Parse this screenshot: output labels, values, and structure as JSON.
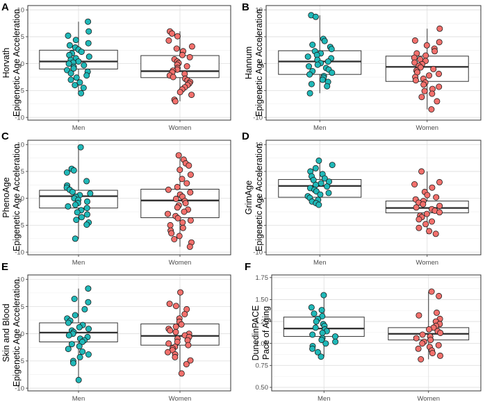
{
  "chart_data": [
    {
      "type": "boxplot",
      "panel": "A",
      "ylabel": [
        "Horvath",
        "Epigenetic Age Acceleration"
      ],
      "categories": [
        "Men",
        "Women"
      ],
      "ylim": [
        -10.5,
        10.8
      ],
      "yticks": [
        -10,
        -5,
        0,
        5,
        10
      ],
      "ytick_labels": [
        "-10",
        "-5",
        "0",
        "5",
        "10"
      ],
      "boxes": [
        {
          "q1": -1.0,
          "median": 0.4,
          "q3": 2.5,
          "whisker_low": -5.5,
          "whisker_high": 7.8
        },
        {
          "q1": -2.6,
          "median": -1.4,
          "q3": 1.5,
          "whisker_low": -7.0,
          "whisker_high": 6.0
        }
      ],
      "points": [
        [
          7.8,
          6.0,
          5.2,
          4.4,
          3.8,
          3.4,
          3.0,
          2.6,
          2.2,
          1.9,
          1.6,
          1.3,
          1.0,
          0.7,
          0.4,
          0.2,
          0.0,
          -0.3,
          -0.6,
          -0.9,
          -1.2,
          -1.5,
          -1.8,
          -2.2,
          -2.6,
          -3.0,
          -3.5,
          -4.0,
          -4.5,
          -5.5
        ],
        [
          6.0,
          5.6,
          5.1,
          4.3,
          3.2,
          2.8,
          2.3,
          1.6,
          1.2,
          0.8,
          0.4,
          0.1,
          -0.2,
          -0.5,
          -0.8,
          -1.1,
          -1.3,
          -1.6,
          -1.9,
          -2.2,
          -2.5,
          -2.8,
          -3.1,
          -3.4,
          -3.7,
          -4.0,
          -4.4,
          -4.8,
          -5.3,
          -5.8,
          -6.7,
          -7.0
        ]
      ]
    },
    {
      "type": "boxplot",
      "panel": "B",
      "ylabel": [
        "Hannum",
        "Epigenetic Age Acceleration"
      ],
      "categories": [
        "Men",
        "Women"
      ],
      "ylim": [
        -10.5,
        10.8
      ],
      "yticks": [
        -10,
        -5,
        0,
        5,
        10
      ],
      "ytick_labels": [
        "-10",
        "-5",
        "0",
        "5",
        "10"
      ],
      "boxes": [
        {
          "q1": -2.0,
          "median": 0.4,
          "q3": 2.4,
          "whisker_low": -5.5,
          "whisker_high": 9.0
        },
        {
          "q1": -3.3,
          "median": -0.6,
          "q3": 1.4,
          "whisker_low": -8.5,
          "whisker_high": 6.5
        }
      ],
      "points": [
        [
          9.0,
          8.7,
          4.6,
          4.2,
          3.5,
          3.1,
          2.7,
          2.3,
          1.9,
          1.6,
          1.3,
          1.0,
          0.7,
          0.4,
          0.1,
          -0.2,
          -0.5,
          -0.8,
          -1.1,
          -1.4,
          -1.7,
          -2.0,
          -2.3,
          -2.6,
          -3.0,
          -3.4,
          -3.8,
          -4.2,
          -5.5
        ],
        [
          6.5,
          4.3,
          4.0,
          3.4,
          2.8,
          2.3,
          1.9,
          1.5,
          1.1,
          0.8,
          0.5,
          0.2,
          -0.1,
          -0.4,
          -0.7,
          -1.0,
          -1.3,
          -1.6,
          -1.9,
          -2.2,
          -2.5,
          -2.8,
          -3.1,
          -3.5,
          -3.9,
          -4.3,
          -4.7,
          -5.1,
          -5.6,
          -6.2,
          -7.0,
          -8.5
        ]
      ]
    },
    {
      "type": "boxplot",
      "panel": "C",
      "ylabel": [
        "PhenoAge",
        "Epigenetic Age Acceleration"
      ],
      "categories": [
        "Men",
        "Women"
      ],
      "ylim": [
        -10.5,
        10.8
      ],
      "yticks": [
        -10,
        -5,
        0,
        5,
        10
      ],
      "ytick_labels": [
        "-10",
        "-5",
        "0",
        "5",
        "10"
      ],
      "boxes": [
        {
          "q1": -1.8,
          "median": 0.4,
          "q3": 1.5,
          "whisker_low": -7.5,
          "whisker_high": 9.5
        },
        {
          "q1": -3.6,
          "median": -0.4,
          "q3": 1.7,
          "whisker_low": -9.0,
          "whisker_high": 8.0
        }
      ],
      "points": [
        [
          9.5,
          5.5,
          5.2,
          4.8,
          3.2,
          2.4,
          2.0,
          1.6,
          1.2,
          0.9,
          0.6,
          0.3,
          0.0,
          -0.3,
          -0.6,
          -0.9,
          -1.2,
          -1.5,
          -1.8,
          -2.2,
          -2.6,
          -3.0,
          -3.5,
          -4.0,
          -4.5,
          -4.9,
          -7.5
        ],
        [
          8.0,
          7.2,
          6.5,
          6.1,
          5.3,
          4.4,
          3.6,
          2.8,
          2.1,
          1.6,
          1.1,
          0.7,
          0.3,
          -0.1,
          -0.5,
          -0.9,
          -1.3,
          -1.7,
          -2.1,
          -2.5,
          -2.9,
          -3.3,
          -3.7,
          -4.1,
          -4.5,
          -5.0,
          -5.5,
          -6.0,
          -6.5,
          -7.0,
          -7.6,
          -8.2,
          -9.0
        ]
      ]
    },
    {
      "type": "boxplot",
      "panel": "D",
      "ylabel": [
        "GrimAge",
        "Epigenetic Age Acceleration"
      ],
      "categories": [
        "Men",
        "Women"
      ],
      "ylim": [
        -10.5,
        10.8
      ],
      "yticks": [
        -10,
        -5,
        0,
        5,
        10
      ],
      "ytick_labels": [
        "-10",
        "-5",
        "0",
        "5",
        "10"
      ],
      "boxes": [
        {
          "q1": 0.2,
          "median": 2.3,
          "q3": 3.5,
          "whisker_low": -1.2,
          "whisker_high": 7.0
        },
        {
          "q1": -2.7,
          "median": -1.8,
          "q3": -0.5,
          "whisker_low": -6.6,
          "whisker_high": 5.0
        }
      ],
      "points": [
        [
          7.0,
          6.2,
          5.6,
          5.0,
          4.5,
          4.1,
          3.7,
          3.4,
          3.1,
          2.8,
          2.5,
          2.2,
          1.9,
          1.6,
          1.3,
          1.0,
          0.7,
          0.4,
          0.1,
          -0.3,
          -0.6,
          -0.9,
          -1.2
        ],
        [
          5.0,
          3.0,
          2.6,
          2.0,
          1.2,
          0.6,
          0.2,
          -0.2,
          -0.5,
          -0.8,
          -1.1,
          -1.4,
          -1.7,
          -2.0,
          -2.3,
          -2.6,
          -2.9,
          -3.2,
          -3.5,
          -3.9,
          -4.3,
          -4.8,
          -5.5,
          -6.1,
          -6.6
        ]
      ]
    },
    {
      "type": "boxplot",
      "panel": "E",
      "ylabel": [
        "Skin and Blood",
        "Epigenetic Age Acceleration"
      ],
      "categories": [
        "Men",
        "Women"
      ],
      "ylim": [
        -10.5,
        10.8
      ],
      "yticks": [
        -10,
        -5,
        0,
        5,
        10
      ],
      "ytick_labels": [
        "-10",
        "-5",
        "0",
        "5",
        "10"
      ],
      "boxes": [
        {
          "q1": -1.5,
          "median": 0.2,
          "q3": 2.0,
          "whisker_low": -8.5,
          "whisker_high": 8.3
        },
        {
          "q1": -2.1,
          "median": -0.4,
          "q3": 1.8,
          "whisker_low": -7.3,
          "whisker_high": 7.6
        }
      ],
      "points": [
        [
          8.3,
          6.4,
          5.8,
          4.5,
          3.4,
          2.8,
          2.4,
          2.0,
          1.6,
          1.2,
          0.9,
          0.6,
          0.3,
          0.0,
          -0.3,
          -0.6,
          -0.9,
          -1.2,
          -1.5,
          -1.9,
          -2.3,
          -2.8,
          -3.3,
          -3.8,
          -4.3,
          -5.0,
          -5.4,
          -8.5
        ],
        [
          7.6,
          5.5,
          5.1,
          4.5,
          3.6,
          2.8,
          2.2,
          1.7,
          1.3,
          0.9,
          0.6,
          0.3,
          0.0,
          -0.3,
          -0.6,
          -0.9,
          -1.2,
          -1.5,
          -1.8,
          -2.1,
          -2.4,
          -2.7,
          -3.0,
          -3.4,
          -3.8,
          -4.3,
          -4.9,
          -5.6,
          -7.3
        ]
      ]
    },
    {
      "type": "boxplot",
      "panel": "F",
      "ylabel": [
        "DunedinPACE",
        "Pace of Aging"
      ],
      "categories": [
        "Men",
        "Women"
      ],
      "ylim": [
        0.46,
        1.78
      ],
      "yticks": [
        0.5,
        0.75,
        1.0,
        1.25,
        1.5,
        1.75
      ],
      "ytick_labels": [
        "0.50",
        "0.75",
        "1.00",
        "1.25",
        "1.50",
        "1.75"
      ],
      "boxes": [
        {
          "q1": 1.08,
          "median": 1.17,
          "q3": 1.3,
          "whisker_low": 0.85,
          "whisker_high": 1.55
        },
        {
          "q1": 1.04,
          "median": 1.11,
          "q3": 1.18,
          "whisker_low": 0.82,
          "whisker_high": 1.59
        }
      ],
      "points": [
        [
          1.55,
          1.41,
          1.38,
          1.34,
          1.31,
          1.28,
          1.25,
          1.22,
          1.2,
          1.18,
          1.16,
          1.14,
          1.12,
          1.1,
          1.08,
          1.06,
          1.04,
          1.02,
          1.0,
          0.97,
          0.94,
          0.9,
          0.85
        ],
        [
          1.59,
          1.54,
          1.35,
          1.32,
          1.28,
          1.25,
          1.22,
          1.2,
          1.18,
          1.16,
          1.14,
          1.12,
          1.1,
          1.08,
          1.06,
          1.04,
          1.02,
          1.0,
          0.98,
          0.96,
          0.94,
          0.92,
          0.89,
          0.86,
          0.82
        ]
      ]
    }
  ],
  "colors": {
    "men": "#20B8B8",
    "women": "#F2706C",
    "panel_bg": "#FFFFFF",
    "grid_major": "#DEDEDE",
    "grid_minor": "#EFEFEF",
    "border": "#333333",
    "box_line": "#333333",
    "point_outline": "#1A1A1A"
  }
}
